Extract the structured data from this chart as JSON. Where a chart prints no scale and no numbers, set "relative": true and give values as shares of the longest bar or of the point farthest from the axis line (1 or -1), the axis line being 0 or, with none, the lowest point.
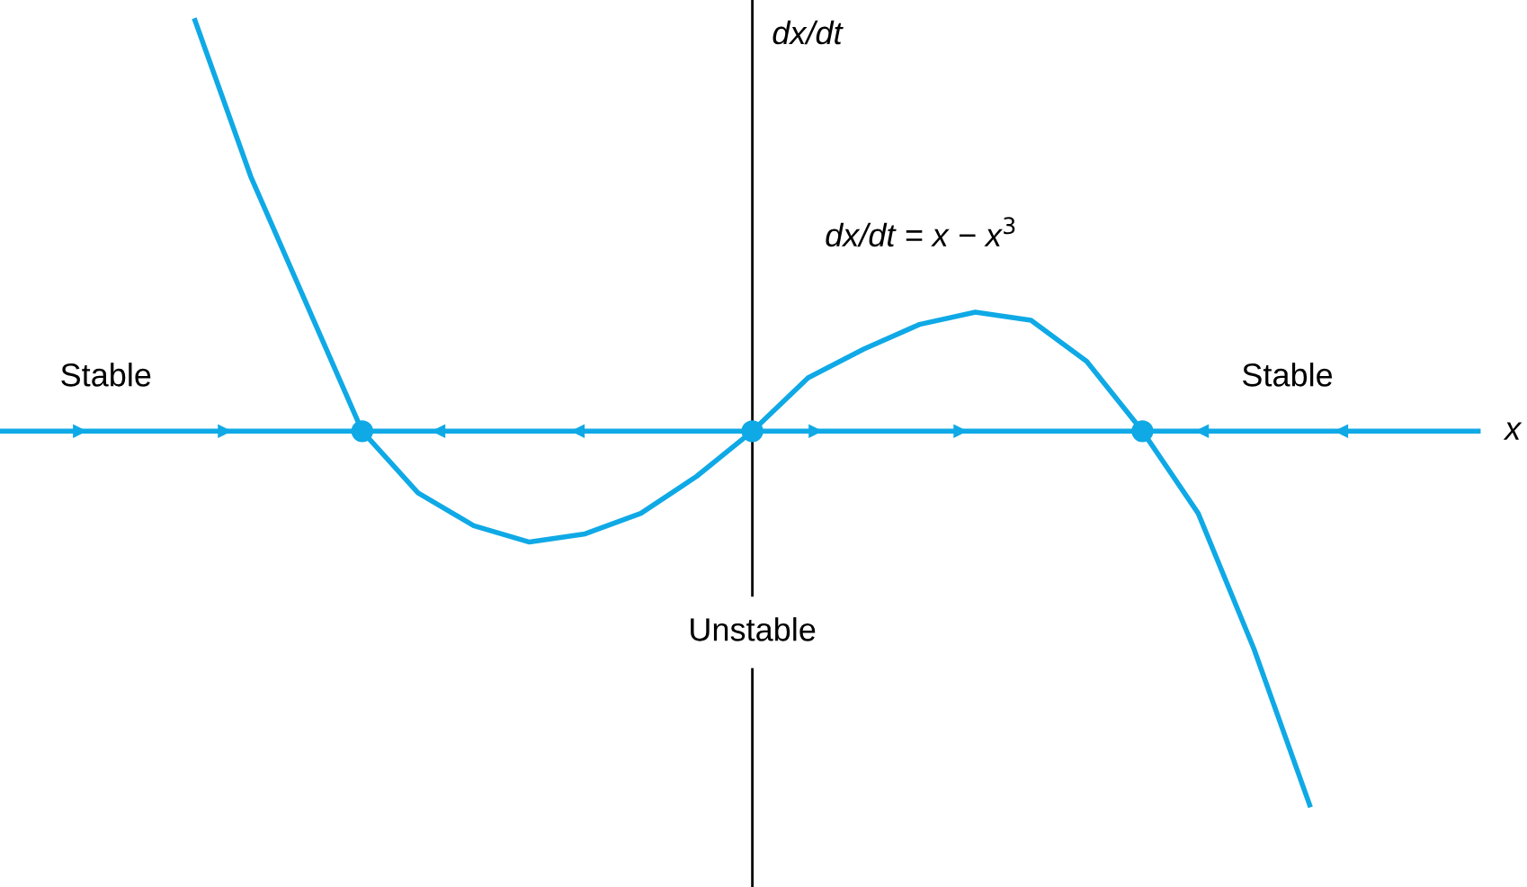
{
  "chart_data": {
    "type": "line",
    "relative": true,
    "ylabel": "dx/dt",
    "categories": [
      null,
      null,
      null,
      null,
      null,
      null,
      null,
      null,
      null,
      null,
      null,
      null,
      null,
      null,
      null,
      null,
      null,
      null,
      null,
      null,
      null
    ],
    "series": [
      {
        "color": "#0fa9e6",
        "values": [
          1,
          0.62,
          0.31,
          0,
          -0.15,
          -0.23,
          -0.27,
          -0.25,
          -0.2,
          -0.11,
          0,
          0.13,
          0.2,
          0.26,
          0.29,
          0.27,
          0.17,
          0,
          -0.2,
          -0.53,
          -0.91
        ]
      }
    ],
    "annotations": [
      "Stable",
      "Stable",
      "Unstable",
      "dx/dt = x − x$^{3}$",
      "x"
    ],
    "ref_lines": [
      {
        "axis": "y",
        "value": 0,
        "color": "#0fa9e6"
      }
    ],
    "legend": false
  }
}
